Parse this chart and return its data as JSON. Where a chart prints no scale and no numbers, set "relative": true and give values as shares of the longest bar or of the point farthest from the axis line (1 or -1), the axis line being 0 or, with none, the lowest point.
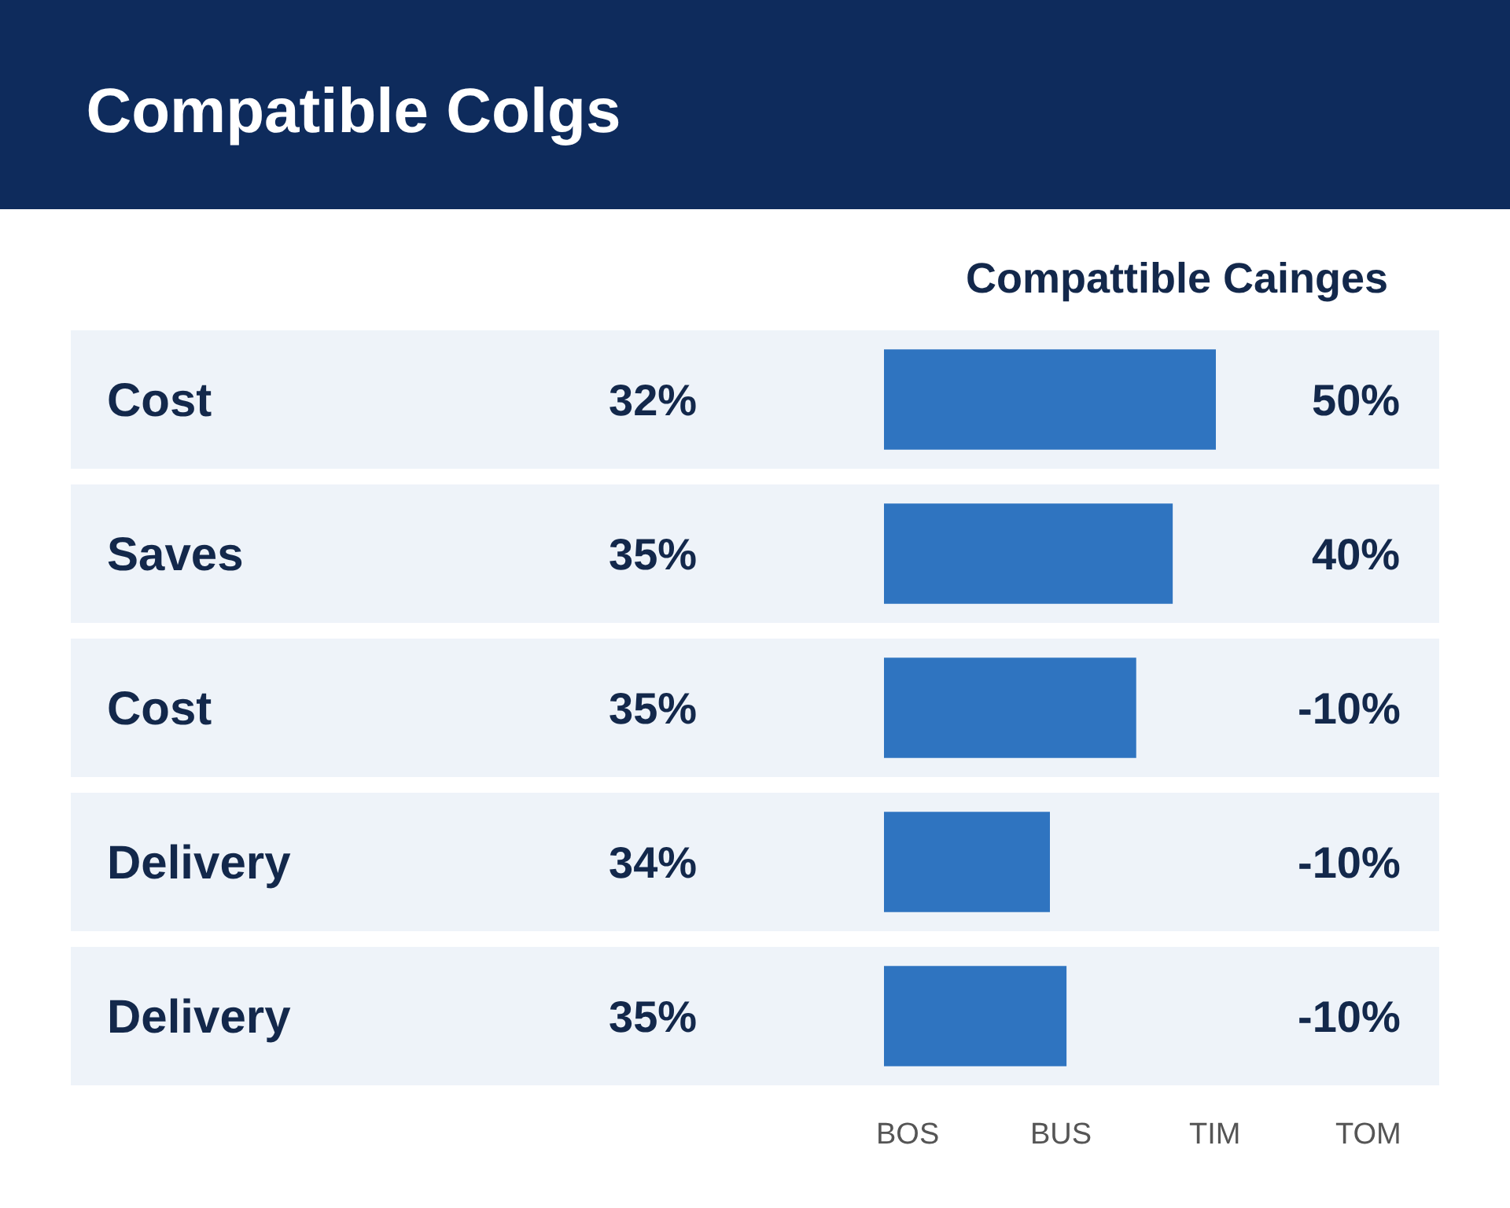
{
  "chart_data": {
    "type": "bar",
    "orientation": "horizontal",
    "relative": true,
    "title": "Compatible Colgs",
    "subtitle": "Compattible Cainges",
    "categories": [
      "Cost",
      "Saves",
      "Cost",
      "Delivery",
      "Delivery"
    ],
    "values": [
      1,
      0.87,
      0.76,
      0.5,
      0.55
    ],
    "color": "#2f74c0",
    "annotations": [
      "32%",
      "35%",
      "35%",
      "34%",
      "35%",
      "50%",
      "40%",
      "-10%",
      "-10%",
      "-10%",
      "BOS",
      "BUS",
      "TIM",
      "TOM"
    ],
    "legend": false
  }
}
